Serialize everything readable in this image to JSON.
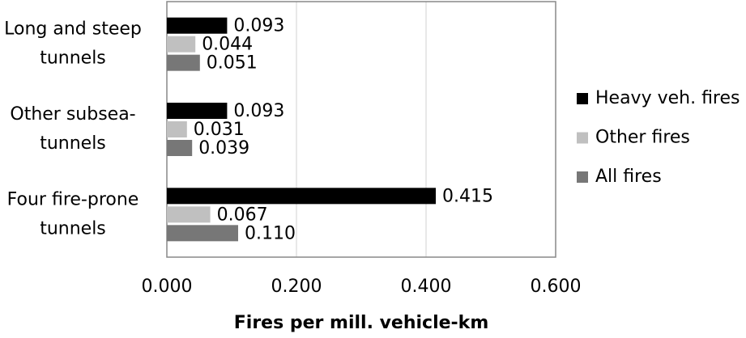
{
  "chart_data": {
    "type": "hbar",
    "xlabel": "Fires per mill. vehicle-km",
    "categories": [
      [
        "Long and steep",
        "tunnels"
      ],
      [
        "Other subsea-",
        "tunnels"
      ],
      [
        "Four fire-prone",
        "tunnels"
      ]
    ],
    "series": [
      {
        "name": "Heavy veh. fires",
        "color": "#000000",
        "values": [
          0.093,
          0.093,
          0.415
        ],
        "value_labels": [
          "0.093",
          "0.093",
          "0.415"
        ]
      },
      {
        "name": "Other fires",
        "color": "#c0c0c0",
        "values": [
          0.044,
          0.031,
          0.067
        ],
        "value_labels": [
          "0.044",
          "0.031",
          "0.067"
        ]
      },
      {
        "name": "All fires",
        "color": "#777777",
        "values": [
          0.051,
          0.039,
          0.11
        ],
        "value_labels": [
          "0.051",
          "0.039",
          "0.110"
        ]
      }
    ],
    "xlim": [
      0,
      0.6
    ],
    "xticks": [
      {
        "value": 0,
        "label": "0.000"
      },
      {
        "value": 0.2,
        "label": "0.200"
      },
      {
        "value": 0.4,
        "label": "0.400"
      },
      {
        "value": 0.6,
        "label": "0.600"
      }
    ],
    "grid": true,
    "legend": "right"
  }
}
